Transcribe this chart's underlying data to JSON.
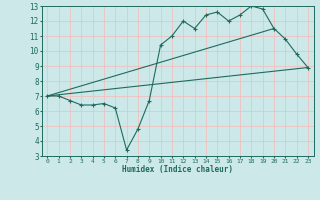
{
  "xlabel": "Humidex (Indice chaleur)",
  "background_color": "#cde8e8",
  "grid_color": "#f0c0c0",
  "line_color": "#1e6b5e",
  "xlim": [
    -0.5,
    23.5
  ],
  "ylim": [
    3,
    13
  ],
  "x_ticks": [
    0,
    1,
    2,
    3,
    4,
    5,
    6,
    7,
    8,
    9,
    10,
    11,
    12,
    13,
    14,
    15,
    16,
    17,
    18,
    19,
    20,
    21,
    22,
    23
  ],
  "y_ticks": [
    3,
    4,
    5,
    6,
    7,
    8,
    9,
    10,
    11,
    12,
    13
  ],
  "series1_x": [
    0,
    1,
    2,
    3,
    4,
    5,
    6,
    7,
    8,
    9,
    10,
    11,
    12,
    13,
    14,
    15,
    16,
    17,
    18,
    19,
    20,
    21,
    22,
    23
  ],
  "series1_y": [
    7.0,
    7.0,
    6.7,
    6.4,
    6.4,
    6.5,
    6.2,
    3.4,
    4.8,
    6.7,
    10.4,
    11.0,
    12.0,
    11.5,
    12.4,
    12.6,
    12.0,
    12.4,
    13.0,
    12.8,
    11.5,
    10.8,
    9.8,
    8.9
  ],
  "series2_x": [
    0,
    23
  ],
  "series2_y": [
    7.0,
    8.9
  ],
  "series3_x": [
    0,
    20
  ],
  "series3_y": [
    7.0,
    11.5
  ]
}
